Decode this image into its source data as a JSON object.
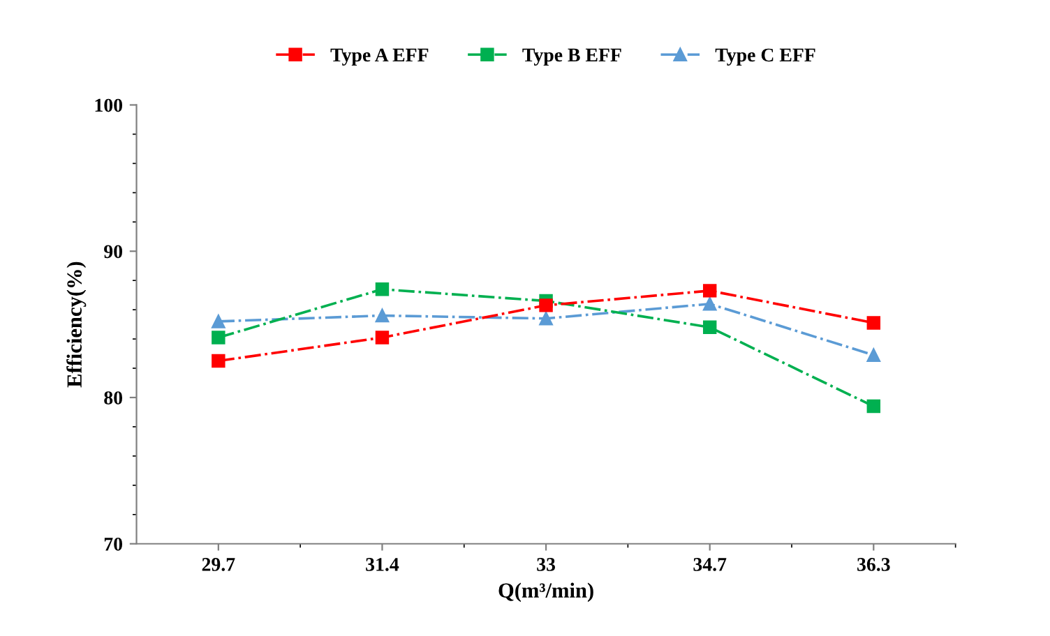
{
  "chart_data": {
    "type": "line",
    "xlabel": "Q(m³/min)",
    "ylabel": "Efficiency(%)",
    "categories": [
      "29.7",
      "31.4",
      "33",
      "34.7",
      "36.3"
    ],
    "series": [
      {
        "name": "Type A EFF",
        "color": "#ff0000",
        "marker": "square",
        "line_style": "dashdot",
        "values": [
          82.5,
          84.1,
          86.3,
          87.3,
          85.1
        ]
      },
      {
        "name": "Type B EFF",
        "color": "#00b050",
        "marker": "square",
        "line_style": "dashdot",
        "values": [
          84.1,
          87.4,
          86.6,
          84.8,
          79.4
        ]
      },
      {
        "name": "Type C EFF",
        "color": "#5b9bd5",
        "marker": "triangle",
        "line_style": "dashdot",
        "values": [
          85.2,
          85.6,
          85.4,
          86.4,
          82.9
        ]
      }
    ],
    "ylim": [
      70,
      100
    ],
    "yticks": [
      70,
      80,
      90,
      100
    ],
    "grid": false,
    "legend": "top"
  }
}
